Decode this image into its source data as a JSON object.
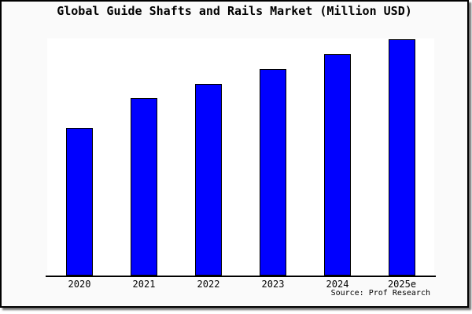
{
  "title": "Global Guide Shafts and Rails Market (Million USD)",
  "source_text": "Source: Prof Research",
  "colors": {
    "bar_fill": "#0000ff",
    "bar_border": "#000000",
    "axis": "#000000",
    "plot_background": "#ffffff",
    "canvas_background": "#fafafa",
    "frame_border": "#000000",
    "title_color": "#000000"
  },
  "chart_data": {
    "type": "bar",
    "title": "Global Guide Shafts and Rails Market (Million USD)",
    "categories": [
      "2020",
      "2021",
      "2022",
      "2023",
      "2024",
      "2025e"
    ],
    "values": [
      500,
      600,
      650,
      700,
      750,
      800
    ],
    "values_note": "y-axis has no tick labels; values estimated from relative bar heights",
    "xlabel": "",
    "ylabel": "",
    "ylim": [
      0,
      803
    ],
    "grid": false,
    "legend": false,
    "source": "Source: Prof Research"
  }
}
